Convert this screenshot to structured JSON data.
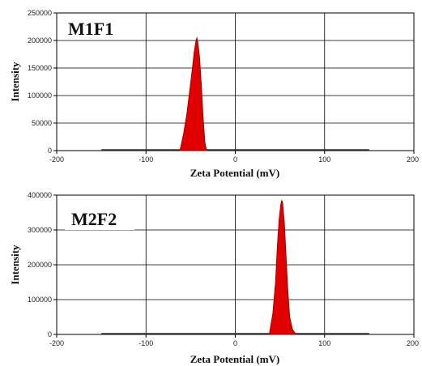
{
  "chart_data": [
    {
      "type": "area",
      "label": "M1F1",
      "xlabel": "Zeta Potential (mV)",
      "ylabel": "Intensity",
      "xlim": [
        -200,
        200
      ],
      "ylim": [
        0,
        250000
      ],
      "xticks": [
        "-200",
        "-100",
        "0",
        "100",
        "200"
      ],
      "yticks": [
        "0",
        "50000",
        "100000",
        "150000",
        "200000",
        "250000"
      ],
      "baseline_range": [
        -150,
        150
      ],
      "grid": true,
      "fill_color": "#e00000",
      "series": [
        {
          "x": [
            -62,
            -58,
            -54,
            -51,
            -48,
            -46,
            -44,
            -43,
            -42,
            -40,
            -38,
            -36,
            -34,
            -32
          ],
          "values": [
            0,
            30000,
            70000,
            110000,
            150000,
            180000,
            200000,
            205000,
            198000,
            170000,
            120000,
            60000,
            15000,
            0
          ]
        }
      ]
    },
    {
      "type": "area",
      "label": "M2F2",
      "xlabel": "Zeta Potential (mV)",
      "ylabel": "Intensity",
      "xlim": [
        -200,
        200
      ],
      "ylim": [
        0,
        400000
      ],
      "xticks": [
        "-200",
        "-100",
        "0",
        "100",
        "200"
      ],
      "yticks": [
        "0",
        "100000",
        "200000",
        "300000",
        "400000"
      ],
      "baseline_range": [
        -150,
        150
      ],
      "grid": true,
      "fill_color": "#e00000",
      "series": [
        {
          "x": [
            38,
            42,
            45,
            47,
            49,
            51,
            52,
            53,
            55,
            57,
            59,
            61,
            64,
            68
          ],
          "values": [
            0,
            60000,
            150000,
            250000,
            330000,
            375000,
            385000,
            380000,
            320000,
            220000,
            120000,
            50000,
            15000,
            0
          ]
        }
      ]
    }
  ]
}
